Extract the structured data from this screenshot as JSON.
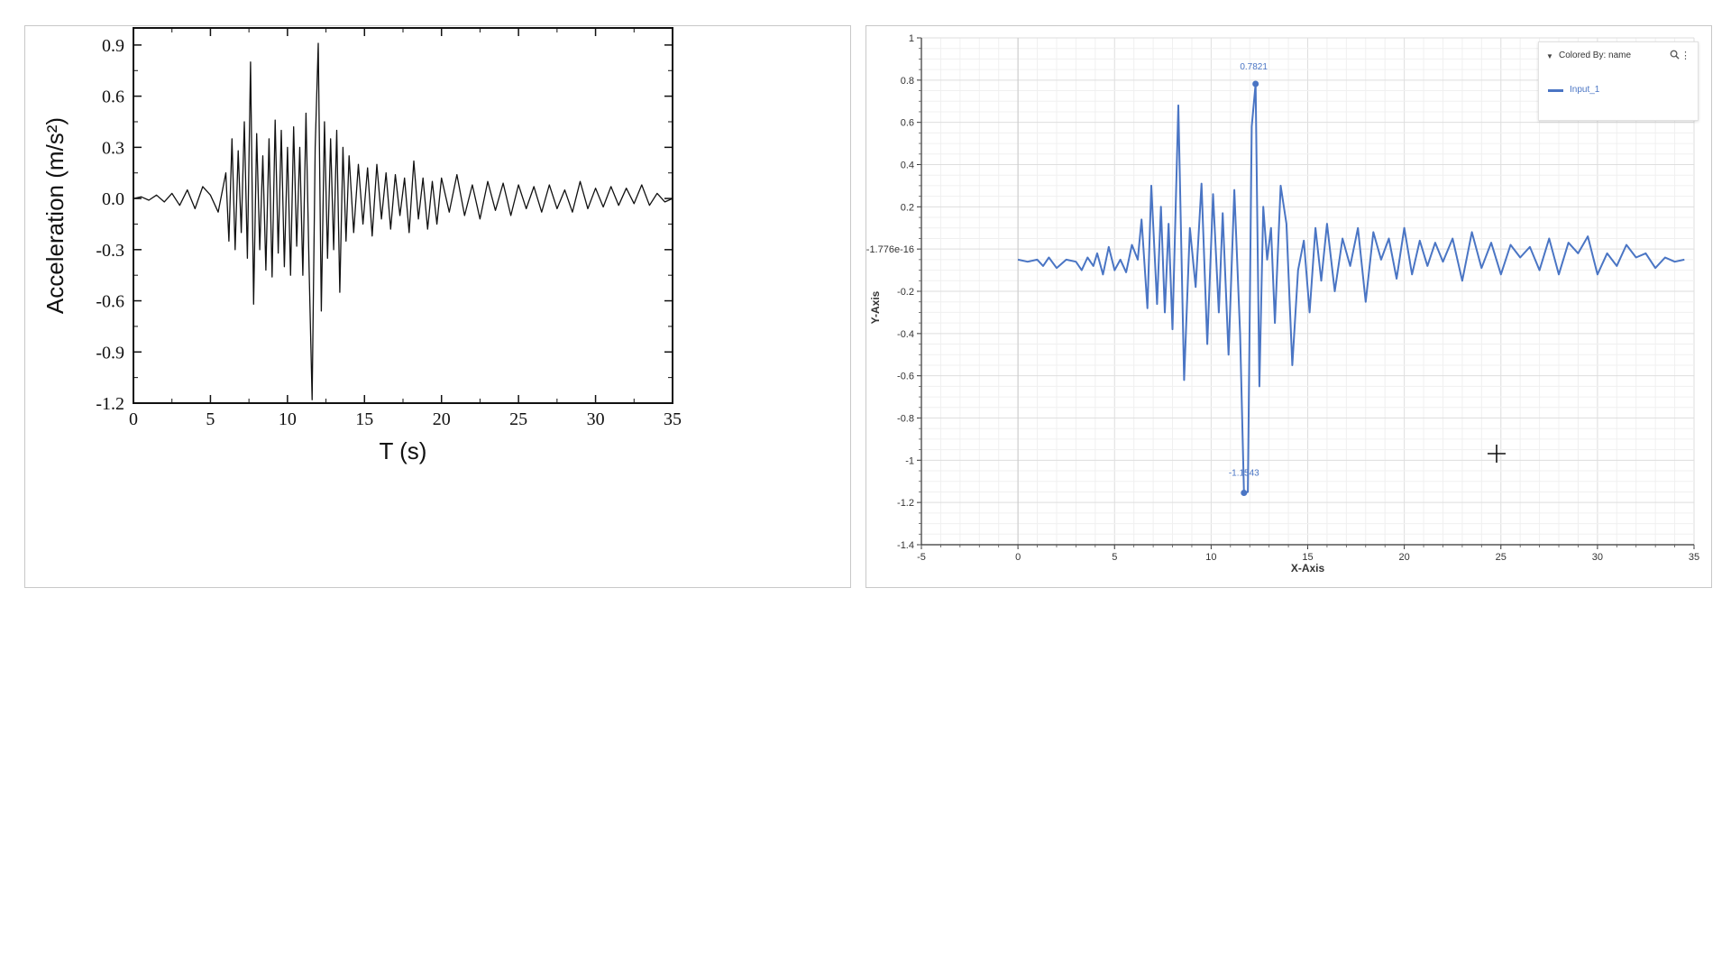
{
  "chart_data": [
    {
      "type": "line",
      "title": "",
      "xlabel": "T (s)",
      "ylabel": "Acceleration (m/s²)",
      "xlim": [
        0,
        35
      ],
      "ylim": [
        -1.2,
        1.0
      ],
      "xticks": [
        "0",
        "5",
        "10",
        "15",
        "20",
        "25",
        "30",
        "35"
      ],
      "yticks": [
        "0.9",
        "0.6",
        "0.3",
        "0.0",
        "-0.3",
        "-0.6",
        "-0.9",
        "-1.2"
      ],
      "color": "#111111",
      "series": [
        {
          "x": [
            0,
            0.5,
            1,
            1.5,
            2,
            2.5,
            3,
            3.5,
            4,
            4.5,
            5,
            5.5,
            6,
            6.2,
            6.4,
            6.6,
            6.8,
            7,
            7.2,
            7.4,
            7.6,
            7.8,
            8,
            8.2,
            8.4,
            8.6,
            8.8,
            9,
            9.2,
            9.4,
            9.6,
            9.8,
            10,
            10.2,
            10.4,
            10.6,
            10.8,
            11,
            11.2,
            11.4,
            11.6,
            11.8,
            12,
            12.2,
            12.4,
            12.6,
            12.8,
            13,
            13.2,
            13.4,
            13.6,
            13.8,
            14,
            14.3,
            14.6,
            14.9,
            15.2,
            15.5,
            15.8,
            16.1,
            16.4,
            16.7,
            17,
            17.3,
            17.6,
            17.9,
            18.2,
            18.5,
            18.8,
            19.1,
            19.4,
            19.7,
            20,
            20.5,
            21,
            21.5,
            22,
            22.5,
            23,
            23.5,
            24,
            24.5,
            25,
            25.5,
            26,
            26.5,
            27,
            27.5,
            28,
            28.5,
            29,
            29.5,
            30,
            30.5,
            31,
            31.5,
            32,
            32.5,
            33,
            33.5,
            34,
            34.5,
            35
          ],
          "y": [
            0,
            0.01,
            -0.01,
            0.02,
            -0.02,
            0.03,
            -0.04,
            0.05,
            -0.06,
            0.07,
            0.02,
            -0.08,
            0.15,
            -0.25,
            0.35,
            -0.3,
            0.28,
            -0.2,
            0.45,
            -0.35,
            0.8,
            -0.62,
            0.38,
            -0.3,
            0.25,
            -0.42,
            0.35,
            -0.46,
            0.46,
            -0.32,
            0.4,
            -0.4,
            0.3,
            -0.45,
            0.42,
            -0.28,
            0.3,
            -0.45,
            0.5,
            -0.4,
            -1.18,
            0.3,
            0.91,
            -0.66,
            0.45,
            -0.35,
            0.35,
            -0.3,
            0.4,
            -0.55,
            0.3,
            -0.25,
            0.25,
            -0.2,
            0.2,
            -0.15,
            0.18,
            -0.22,
            0.2,
            -0.12,
            0.15,
            -0.18,
            0.14,
            -0.1,
            0.12,
            -0.2,
            0.22,
            -0.12,
            0.12,
            -0.18,
            0.1,
            -0.15,
            0.12,
            -0.08,
            0.14,
            -0.1,
            0.08,
            -0.12,
            0.1,
            -0.07,
            0.09,
            -0.1,
            0.08,
            -0.06,
            0.07,
            -0.08,
            0.08,
            -0.06,
            0.05,
            -0.08,
            0.1,
            -0.06,
            0.06,
            -0.05,
            0.07,
            -0.04,
            0.06,
            -0.03,
            0.08,
            -0.04,
            0.03,
            -0.02,
            0
          ]
        }
      ]
    },
    {
      "type": "line",
      "title": "",
      "xlabel": "X-Axis",
      "ylabel": "Y-Axis",
      "xlim": [
        -5,
        35
      ],
      "ylim": [
        -1.4,
        1.0
      ],
      "xticks": [
        "-5",
        "0",
        "5",
        "10",
        "15",
        "20",
        "25",
        "30",
        "35"
      ],
      "yticks": [
        "1",
        "0.8",
        "0.6",
        "0.4",
        "0.2",
        "-1.776e-16",
        "-0.2",
        "-0.4",
        "-0.6",
        "-0.8",
        "-1",
        "-1.2",
        "-1.4"
      ],
      "color": "#4a75c4",
      "legend": {
        "header": "Colored By: name",
        "position": "top-right"
      },
      "annotations": [
        "0.7821",
        "-1.1543"
      ],
      "series": [
        {
          "name": "Input_1",
          "x": [
            0,
            0.5,
            1,
            1.3,
            1.6,
            2,
            2.5,
            3,
            3.3,
            3.6,
            3.9,
            4.1,
            4.4,
            4.7,
            5,
            5.3,
            5.6,
            5.9,
            6.2,
            6.4,
            6.7,
            6.9,
            7.2,
            7.4,
            7.6,
            7.8,
            8,
            8.3,
            8.6,
            8.9,
            9.2,
            9.5,
            9.8,
            10.1,
            10.4,
            10.6,
            10.9,
            11.2,
            11.5,
            11.7,
            11.9,
            12.1,
            12.3,
            12.5,
            12.7,
            12.9,
            13.1,
            13.3,
            13.6,
            13.9,
            14.2,
            14.5,
            14.8,
            15.1,
            15.4,
            15.7,
            16,
            16.4,
            16.8,
            17.2,
            17.6,
            18,
            18.4,
            18.8,
            19.2,
            19.6,
            20,
            20.4,
            20.8,
            21.2,
            21.6,
            22,
            22.5,
            23,
            23.5,
            24,
            24.5,
            25,
            25.5,
            26,
            26.5,
            27,
            27.5,
            28,
            28.5,
            29,
            29.5,
            30,
            30.5,
            31,
            31.5,
            32,
            32.5,
            33,
            33.5,
            34,
            34.5
          ],
          "y": [
            -0.05,
            -0.06,
            -0.05,
            -0.08,
            -0.04,
            -0.09,
            -0.05,
            -0.06,
            -0.1,
            -0.04,
            -0.08,
            -0.02,
            -0.12,
            0.01,
            -0.1,
            -0.05,
            -0.11,
            0.02,
            -0.05,
            0.14,
            -0.28,
            0.3,
            -0.26,
            0.2,
            -0.3,
            0.12,
            -0.38,
            0.68,
            -0.62,
            0.1,
            -0.18,
            0.31,
            -0.45,
            0.26,
            -0.3,
            0.17,
            -0.5,
            0.28,
            -0.4,
            -1.1543,
            -1.15,
            0.58,
            0.7821,
            -0.65,
            0.2,
            -0.05,
            0.1,
            -0.35,
            0.3,
            0.12,
            -0.55,
            -0.1,
            0.04,
            -0.3,
            0.1,
            -0.15,
            0.12,
            -0.2,
            0.05,
            -0.08,
            0.1,
            -0.25,
            0.08,
            -0.05,
            0.05,
            -0.14,
            0.1,
            -0.12,
            0.04,
            -0.08,
            0.03,
            -0.06,
            0.05,
            -0.15,
            0.08,
            -0.09,
            0.03,
            -0.12,
            0.02,
            -0.04,
            0.01,
            -0.1,
            0.05,
            -0.12,
            0.03,
            -0.02,
            0.06,
            -0.12,
            -0.02,
            -0.08,
            0.02,
            -0.04,
            -0.02,
            -0.09,
            -0.04,
            -0.06,
            -0.05
          ]
        }
      ]
    }
  ]
}
